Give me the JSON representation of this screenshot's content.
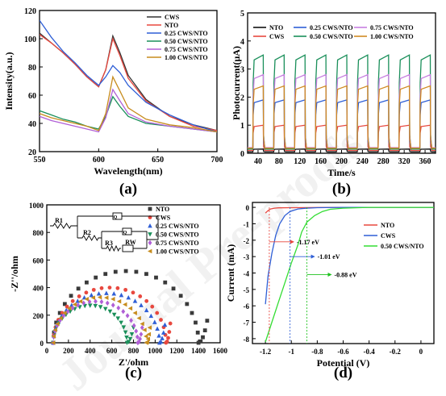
{
  "watermark": "Journal Pre-proofs",
  "chart_data": [
    {
      "panel_label": "(a)",
      "type": "line",
      "xlabel": "Wavelength(nm)",
      "ylabel": "Intensity(a.u.)",
      "xlim": [
        550,
        700
      ],
      "ylim": [
        20,
        120
      ],
      "xticks": [
        550,
        600,
        650,
        700
      ],
      "yticks": [
        20,
        40,
        60,
        80,
        100,
        120
      ],
      "legend_position": "top-right",
      "series": [
        {
          "name": "CWS",
          "color": "#333333",
          "x": [
            550,
            560,
            570,
            580,
            590,
            600,
            606,
            612,
            618,
            625,
            640,
            660,
            680,
            700
          ],
          "y": [
            104,
            97,
            90,
            82,
            73,
            66,
            78,
            102,
            90,
            74,
            57,
            45,
            39,
            35
          ]
        },
        {
          "name": "NTO",
          "color": "#e8483f",
          "x": [
            550,
            560,
            570,
            580,
            590,
            600,
            606,
            612,
            618,
            625,
            640,
            660,
            680,
            700
          ],
          "y": [
            103,
            97,
            90,
            82,
            73,
            66,
            78,
            100,
            88,
            72,
            56,
            45,
            38,
            35
          ]
        },
        {
          "name": "0.25 CWS/NTO",
          "color": "#2f5fd6",
          "x": [
            550,
            560,
            570,
            580,
            590,
            600,
            606,
            612,
            618,
            625,
            640,
            660,
            680,
            700
          ],
          "y": [
            113,
            101,
            91,
            83,
            74,
            67,
            73,
            81,
            76,
            67,
            55,
            46,
            39,
            34
          ]
        },
        {
          "name": "0.50 CWS/NTO",
          "color": "#1a8f5a",
          "x": [
            550,
            560,
            570,
            580,
            590,
            600,
            606,
            612,
            618,
            625,
            640,
            660,
            680,
            700
          ],
          "y": [
            49,
            46,
            43,
            41,
            38,
            36,
            45,
            59,
            52,
            45,
            40,
            38,
            36,
            34
          ]
        },
        {
          "name": "0.75 CWS/NTO",
          "color": "#b05fd6",
          "x": [
            550,
            560,
            570,
            580,
            590,
            600,
            606,
            612,
            618,
            625,
            640,
            660,
            680,
            700
          ],
          "y": [
            45,
            42,
            40,
            38,
            36,
            34,
            44,
            64,
            56,
            47,
            41,
            38,
            36,
            34
          ]
        },
        {
          "name": "1.00 CWS/NTO",
          "color": "#c78c1e",
          "x": [
            550,
            560,
            570,
            580,
            590,
            600,
            606,
            612,
            618,
            625,
            640,
            660,
            680,
            700
          ],
          "y": [
            47,
            44,
            42,
            40,
            38,
            35,
            47,
            73,
            63,
            51,
            43,
            39,
            37,
            34
          ]
        }
      ]
    },
    {
      "panel_label": "(b)",
      "type": "line",
      "xlabel": "Time/s",
      "ylabel": "Photocurrent(μA)",
      "xlim": [
        20,
        380
      ],
      "ylim": [
        0,
        5
      ],
      "xticks": [
        40,
        80,
        120,
        160,
        200,
        240,
        280,
        320,
        360
      ],
      "yticks": [
        0,
        1,
        2,
        3,
        4,
        5
      ],
      "legend_position": "top",
      "pulse": {
        "first_on": 30,
        "period": 40,
        "on_duration": 20,
        "cycles": 9,
        "end": 380
      },
      "series": [
        {
          "name": "NTO",
          "color": "#111111",
          "dark": 0.05,
          "on": 0.15
        },
        {
          "name": "CWS",
          "color": "#e8483f",
          "dark": 0.1,
          "on": 1.0
        },
        {
          "name": "0.25 CWS/NTO",
          "color": "#2f5fd6",
          "dark": 0.15,
          "on": 1.9
        },
        {
          "name": "0.50 CWS/NTO",
          "color": "#1a8f5a",
          "dark": 0.15,
          "on": 3.5
        },
        {
          "name": "0.75 CWS/NTO",
          "color": "#c77fe0",
          "dark": 0.2,
          "on": 2.8
        },
        {
          "name": "1.00 CWS/NTO",
          "color": "#d08a22",
          "dark": 0.18,
          "on": 2.4
        }
      ]
    },
    {
      "panel_label": "(c)",
      "type": "scatter",
      "xlabel": "Z'/ohm",
      "ylabel": "-Z''/ohm",
      "xlim": [
        0,
        1600
      ],
      "ylim": [
        0,
        1000
      ],
      "xticks": [
        0,
        200,
        400,
        600,
        800,
        1000,
        1200,
        1400,
        1600
      ],
      "yticks": [
        0,
        200,
        400,
        600,
        800,
        1000
      ],
      "legend_position": "top-right",
      "circuit_labels": [
        "R1",
        "R2",
        "R3",
        "RW",
        "Q",
        "Q"
      ],
      "series": [
        {
          "name": "NTO",
          "color": "#3a3a3a",
          "marker": "square",
          "x0": 60,
          "diameter": 1340,
          "height": 520,
          "tail_end": 1480,
          "tail_rise": 160
        },
        {
          "name": "CWS",
          "color": "#e8483f",
          "marker": "circle",
          "x0": 60,
          "diameter": 1040,
          "height": 400,
          "tail_end": 1140,
          "tail_rise": 140
        },
        {
          "name": "0.25 CWS/NTO",
          "color": "#2f5fd6",
          "marker": "triangle-up",
          "x0": 60,
          "diameter": 980,
          "height": 360,
          "tail_end": 1090,
          "tail_rise": 130
        },
        {
          "name": "0.50 CWS/NTO",
          "color": "#1a8f5a",
          "marker": "triangle-down",
          "x0": 60,
          "diameter": 680,
          "height": 270,
          "tail_end": 800,
          "tail_rise": 110
        },
        {
          "name": "0.75 CWS/NTO",
          "color": "#b05fd6",
          "marker": "diamond",
          "x0": 60,
          "diameter": 780,
          "height": 300,
          "tail_end": 880,
          "tail_rise": 110
        },
        {
          "name": "1.00 CWS/NTO",
          "color": "#c78c1e",
          "marker": "triangle-left",
          "x0": 60,
          "diameter": 860,
          "height": 330,
          "tail_end": 950,
          "tail_rise": 110
        }
      ]
    },
    {
      "panel_label": "(d)",
      "type": "line",
      "xlabel": "Potential (V)",
      "ylabel": "Current (mA)",
      "xlim": [
        -1.3,
        0.1
      ],
      "ylim": [
        -8.3,
        0.3
      ],
      "xticks": [
        -1.2,
        -1.0,
        -0.8,
        -0.6,
        -0.4,
        -0.2,
        0.0
      ],
      "yticks": [
        0,
        -1,
        -2,
        -3,
        -4,
        -5,
        -6,
        -7,
        -8
      ],
      "legend_position": "top-right",
      "series": [
        {
          "name": "NTO",
          "color": "#e8483f",
          "x": [
            -1.2,
            -1.18,
            -1.16,
            -1.13,
            -1.1,
            -1.0,
            -0.8,
            -0.6,
            -0.4,
            -0.2,
            0.0,
            0.1
          ],
          "y": [
            -0.35,
            -0.2,
            -0.1,
            -0.05,
            -0.03,
            -0.02,
            -0.01,
            0,
            0,
            0,
            0,
            0
          ]
        },
        {
          "name": "CWS",
          "color": "#2f5fd6",
          "x": [
            -1.2,
            -1.18,
            -1.15,
            -1.12,
            -1.09,
            -1.05,
            -1.01,
            -0.95,
            -0.9,
            -0.8,
            -0.6,
            -0.4,
            -0.2,
            0.0,
            0.1
          ],
          "y": [
            -5.9,
            -4.2,
            -2.8,
            -1.7,
            -1.0,
            -0.5,
            -0.25,
            -0.1,
            -0.06,
            -0.02,
            0,
            0,
            0,
            0,
            0
          ]
        },
        {
          "name": "0.50 CWS/NTO",
          "color": "#33dd33",
          "x": [
            -1.2,
            -1.15,
            -1.1,
            -1.05,
            -1.0,
            -0.95,
            -0.92,
            -0.88,
            -0.82,
            -0.76,
            -0.7,
            -0.6,
            -0.4,
            -0.2,
            0.0,
            0.1
          ],
          "y": [
            -8.2,
            -7.0,
            -5.8,
            -4.6,
            -3.4,
            -2.3,
            -1.5,
            -0.9,
            -0.5,
            -0.25,
            -0.12,
            -0.05,
            0,
            0,
            0,
            0
          ]
        }
      ],
      "annotations": [
        {
          "text": "-1.17 eV",
          "x": -1.17,
          "y": -2.1,
          "color": "#e8483f"
        },
        {
          "text": "-1.01 eV",
          "x": -1.01,
          "y": -3.0,
          "color": "#2f5fd6"
        },
        {
          "text": "-0.88 eV",
          "x": -0.88,
          "y": -4.1,
          "color": "#1fc21f"
        }
      ]
    }
  ]
}
